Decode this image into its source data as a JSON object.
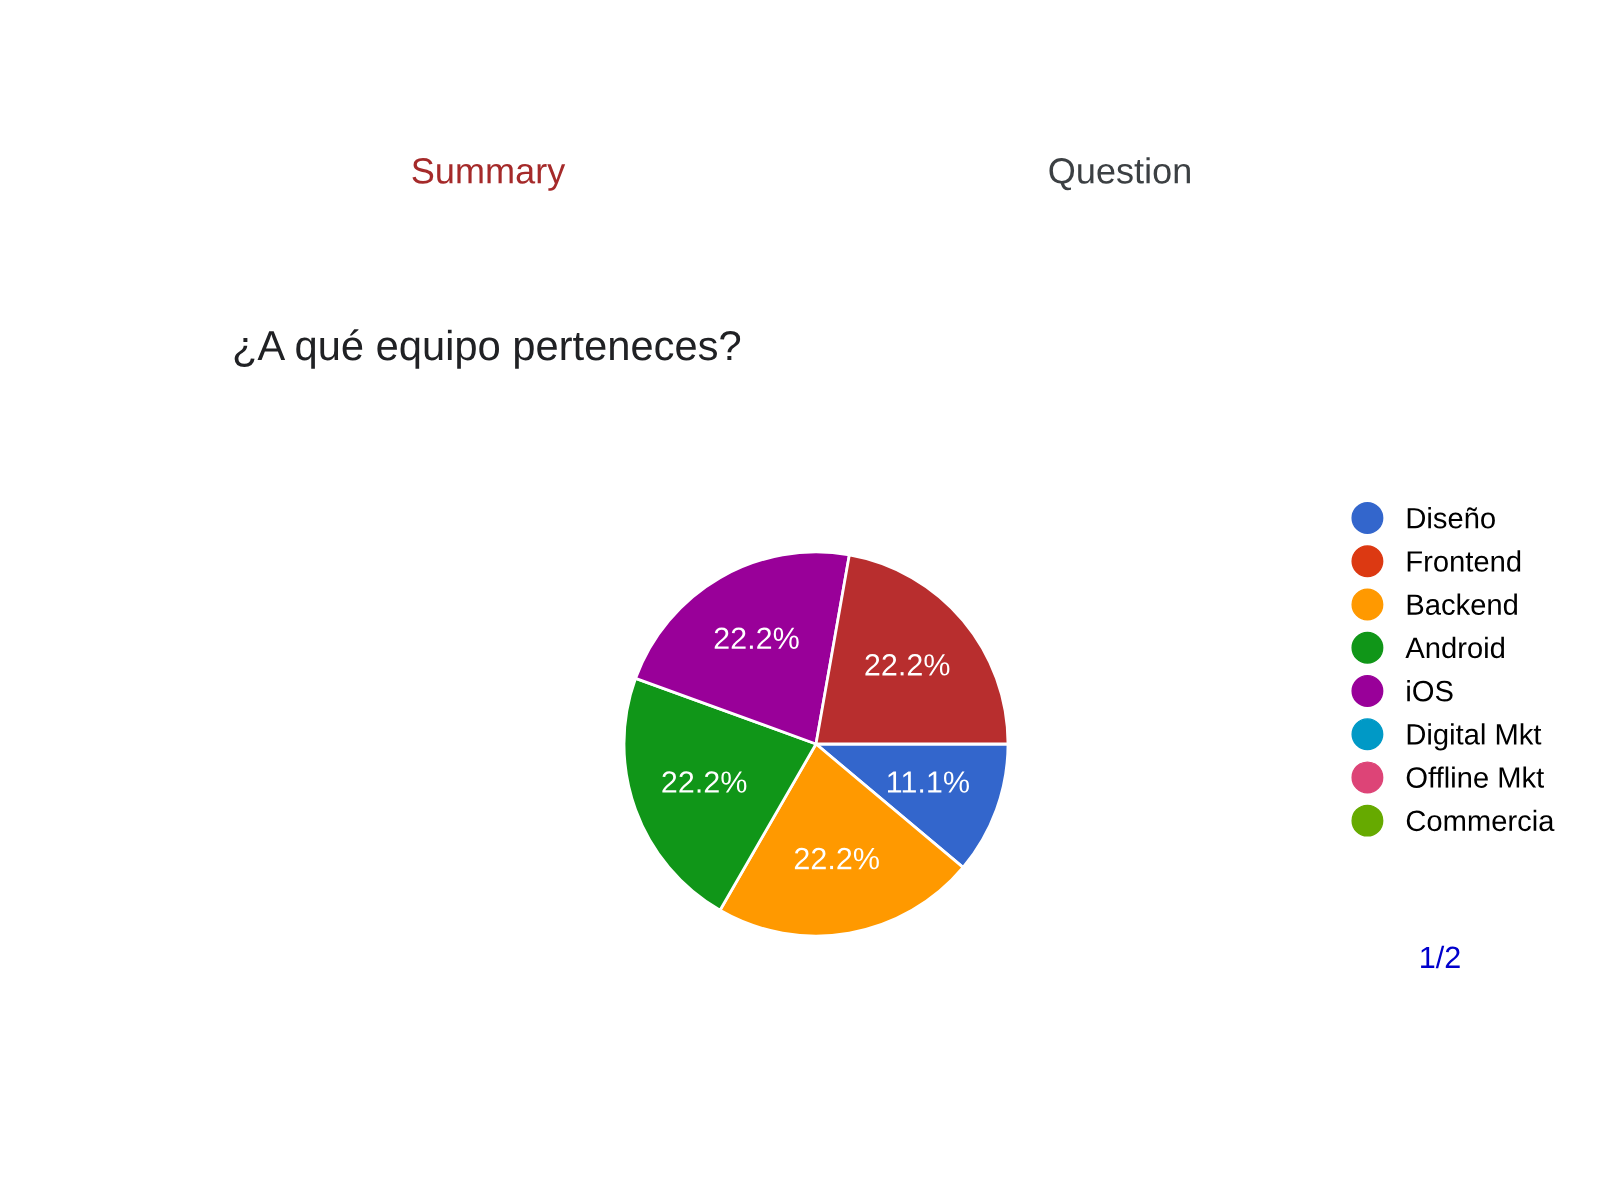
{
  "chart_data": {
    "type": "pie",
    "title": "¿A qué equipo perteneces?",
    "categories": [
      "Diseño",
      "Frontend",
      "Backend",
      "Android",
      "iOS",
      "Digital Mkt",
      "Offline Mkt",
      "Commercia",
      null
    ],
    "values": [
      11.1,
      0,
      22.2,
      22.2,
      22.2,
      0,
      0,
      0,
      22.2
    ],
    "colors": [
      "#3366cc",
      "#dc3912",
      "#ff9900",
      "#109618",
      "#990099",
      "#0099c6",
      "#dd4477",
      "#66aa00",
      "#b82e2e"
    ],
    "value_labels": [
      "11.1%",
      null,
      "22.2%",
      "22.2%",
      "22.2%",
      null,
      null,
      null,
      "22.2%"
    ],
    "legend": "right",
    "annotations": [
      "Summary",
      "Question",
      "1/2"
    ]
  }
}
